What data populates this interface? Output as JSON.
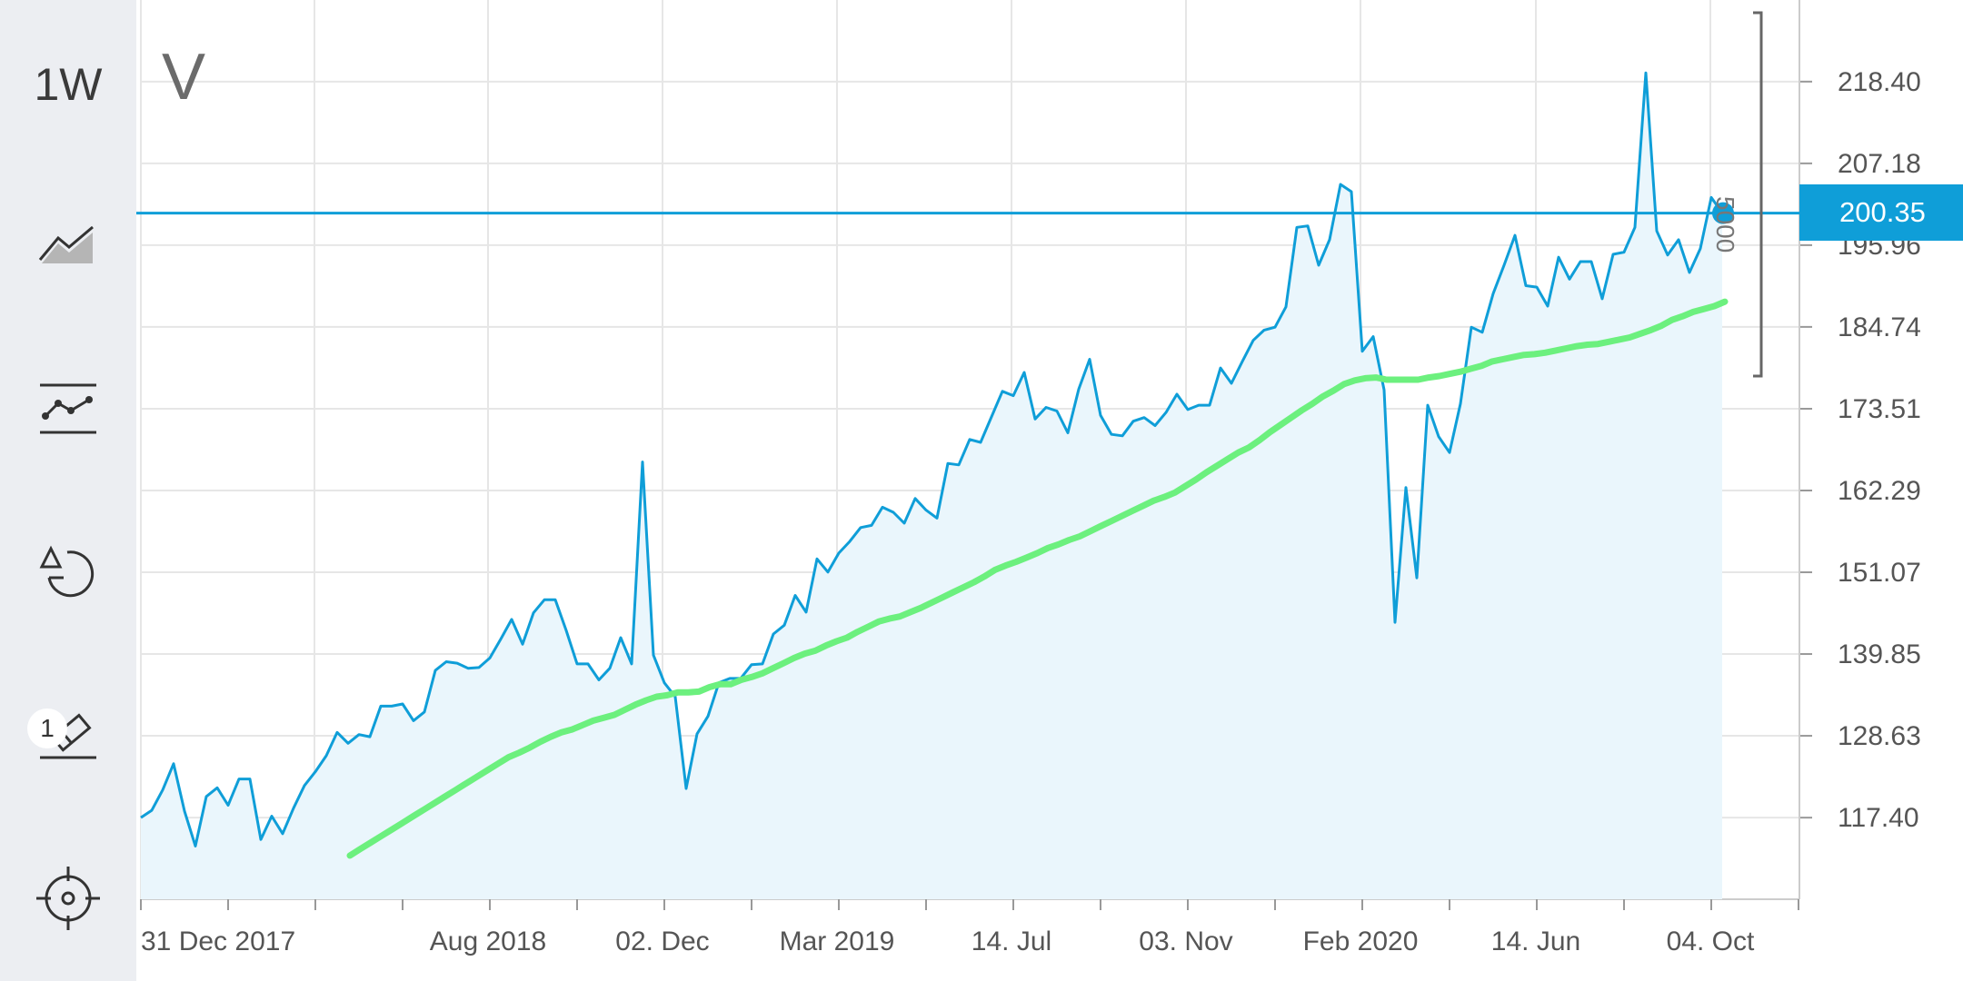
{
  "app": {
    "timeframe": "1W",
    "symbol": "V"
  },
  "sidebar": {
    "tools": [
      {
        "name": "area-chart-icon"
      },
      {
        "name": "indicator-icon"
      },
      {
        "name": "shapes-icon"
      },
      {
        "name": "drawing-tool-icon",
        "badge": "1"
      },
      {
        "name": "crosshair-icon"
      }
    ]
  },
  "price": {
    "current": "200.35",
    "volume_label": "5000"
  },
  "colors": {
    "price_line": "#0f9ed8",
    "area_fill": "#eaf6fc",
    "moving_average": "#6cf07e",
    "grid": "#e6e6e6",
    "sidebar": "#eceef2"
  },
  "chart_data": {
    "type": "line",
    "y_ticks": [
      "218.40",
      "207.18",
      "195.96",
      "184.74",
      "173.51",
      "162.29",
      "151.07",
      "139.85",
      "128.63",
      "117.40"
    ],
    "x_ticks": [
      "31 Dec 2017",
      "Aug 2018",
      "02. Dec",
      "Mar 2019",
      "14. Jul",
      "03. Nov",
      "Feb 2020",
      "14. Jun",
      "04. Oct"
    ],
    "ylim": [
      106.2,
      229.6
    ],
    "grid": true,
    "series": [
      {
        "type": "area",
        "values": [
          117.4,
          118.4,
          121.2,
          124.8,
          118.3,
          113.5,
          120.3,
          121.5,
          119.1,
          122.7,
          122.7,
          114.4,
          117.6,
          115.2,
          118.7,
          121.8,
          123.7,
          125.9,
          129.1,
          127.6,
          128.8,
          128.5,
          132.7,
          132.7,
          133.0,
          130.7,
          131.9,
          137.6,
          138.8,
          138.6,
          137.9,
          138.0,
          139.3,
          141.9,
          144.6,
          141.2,
          145.5,
          147.3,
          147.3,
          143.1,
          138.5,
          138.5,
          136.3,
          137.9,
          142.1,
          138.5,
          166.2,
          139.7,
          135.9,
          134.0,
          121.4,
          128.9,
          131.3,
          135.9,
          136.5,
          136.5,
          138.4,
          138.5,
          142.6,
          143.8,
          147.9,
          145.6,
          152.9,
          151.1,
          153.7,
          155.3,
          157.2,
          157.5,
          160.0,
          159.3,
          157.8,
          161.2,
          159.6,
          158.5,
          166.0,
          165.8,
          169.3,
          168.9,
          172.4,
          175.9,
          175.3,
          178.5,
          172.1,
          173.7,
          173.2,
          170.2,
          176.2,
          180.3,
          172.6,
          170.0,
          169.8,
          171.8,
          172.3,
          171.2,
          173.0,
          175.5,
          173.4,
          174.0,
          174.0,
          179.1,
          177.0,
          180.0,
          182.9,
          184.3,
          184.7,
          187.5,
          198.4,
          198.6,
          193.2,
          196.7,
          204.3,
          203.3,
          181.4,
          183.4,
          176.1,
          144.2,
          162.7,
          150.3,
          174.0,
          169.7,
          167.5,
          174.2,
          184.7,
          184.0,
          189.3,
          193.2,
          197.3,
          190.4,
          190.2,
          187.6,
          194.3,
          191.3,
          193.7,
          193.7,
          188.6,
          194.7,
          195.0,
          198.4,
          219.6,
          197.9,
          194.6,
          196.7,
          192.2,
          195.5,
          202.5,
          200.4
        ]
      },
      {
        "type": "moving-average",
        "values": [
          112.2,
          113.1,
          114.0,
          114.9,
          115.8,
          116.7,
          117.6,
          118.5,
          119.4,
          120.3,
          121.2,
          122.1,
          123.0,
          123.9,
          124.8,
          125.7,
          126.3,
          127.0,
          127.8,
          128.5,
          129.1,
          129.5,
          130.1,
          130.7,
          131.1,
          131.5,
          132.2,
          132.9,
          133.5,
          134.0,
          134.2,
          134.6,
          134.6,
          134.7,
          135.3,
          135.7,
          135.7,
          136.3,
          136.7,
          137.2,
          137.9,
          138.6,
          139.3,
          139.9,
          140.3,
          141.0,
          141.6,
          142.1,
          142.9,
          143.6,
          144.3,
          144.7,
          145.0,
          145.6,
          146.2,
          146.9,
          147.6,
          148.3,
          149.0,
          149.7,
          150.5,
          151.4,
          152.0,
          152.5,
          153.1,
          153.7,
          154.4,
          154.9,
          155.5,
          156.0,
          156.7,
          157.4,
          158.1,
          158.8,
          159.5,
          160.2,
          160.9,
          161.4,
          162.0,
          162.9,
          163.8,
          164.8,
          165.7,
          166.6,
          167.5,
          168.2,
          169.2,
          170.3,
          171.3,
          172.3,
          173.3,
          174.2,
          175.2,
          176.0,
          176.9,
          177.4,
          177.7,
          177.8,
          177.5,
          177.5,
          177.5,
          177.5,
          177.8,
          178.0,
          178.3,
          178.6,
          179.0,
          179.4,
          180.0,
          180.3,
          180.6,
          180.9,
          181.0,
          181.2,
          181.5,
          181.8,
          182.1,
          182.3,
          182.4,
          182.7,
          183.0,
          183.3,
          183.8,
          184.3,
          184.9,
          185.7,
          186.2,
          186.8,
          187.2,
          187.6,
          188.2
        ]
      }
    ]
  }
}
